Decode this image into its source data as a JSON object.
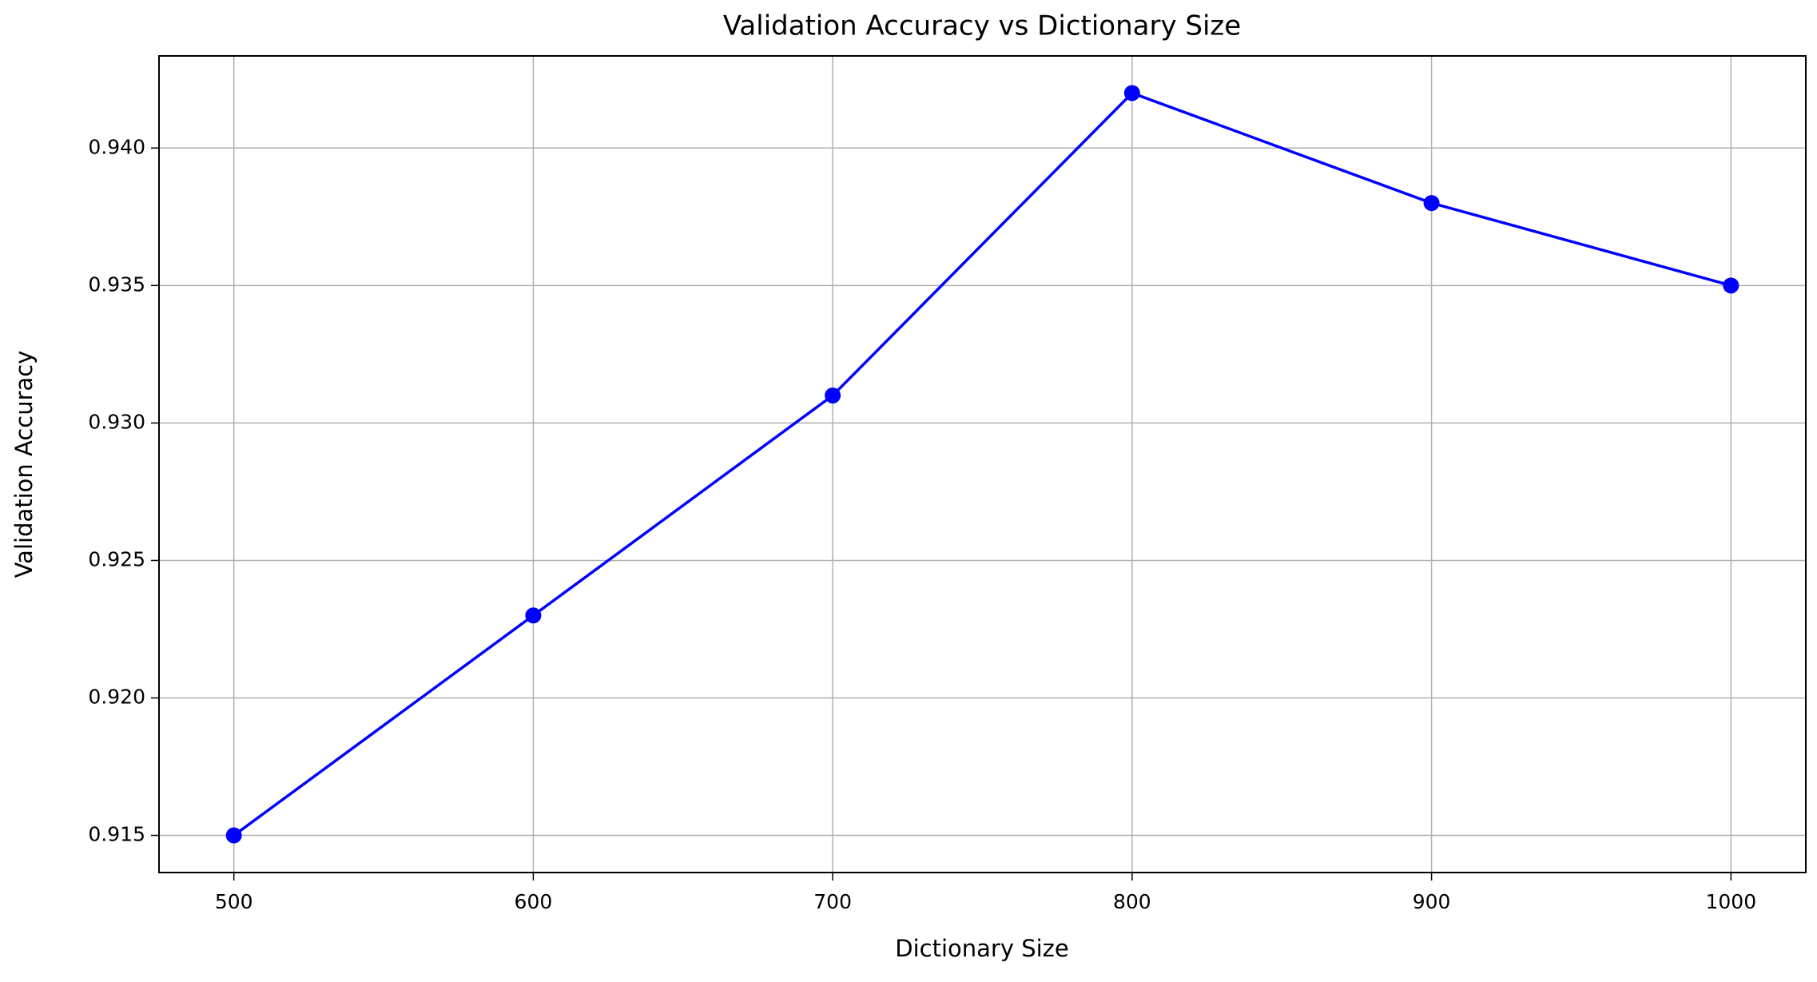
{
  "chart_data": {
    "type": "line",
    "title": "Validation Accuracy vs Dictionary Size",
    "x_label": "Dictionary Size",
    "y_label": "Validation Accuracy",
    "x": [
      500,
      600,
      700,
      800,
      900,
      1000
    ],
    "series": [
      {
        "color": "#0000ff",
        "values": [
          0.915,
          0.923,
          0.931,
          0.942,
          0.938,
          0.935
        ]
      }
    ],
    "xlim": [
      475,
      1025
    ],
    "xticks": [
      500,
      600,
      700,
      800,
      900,
      1000
    ],
    "ylim": [
      0.91365,
      0.94335
    ],
    "yticks": [
      0.915,
      {
        "value": 0.92,
        "label": "0.920"
      },
      0.925,
      {
        "value": 0.93,
        "label": "0.930"
      },
      0.935,
      {
        "value": 0.94,
        "label": "0.940"
      }
    ],
    "grid": true,
    "marker": "circle"
  }
}
